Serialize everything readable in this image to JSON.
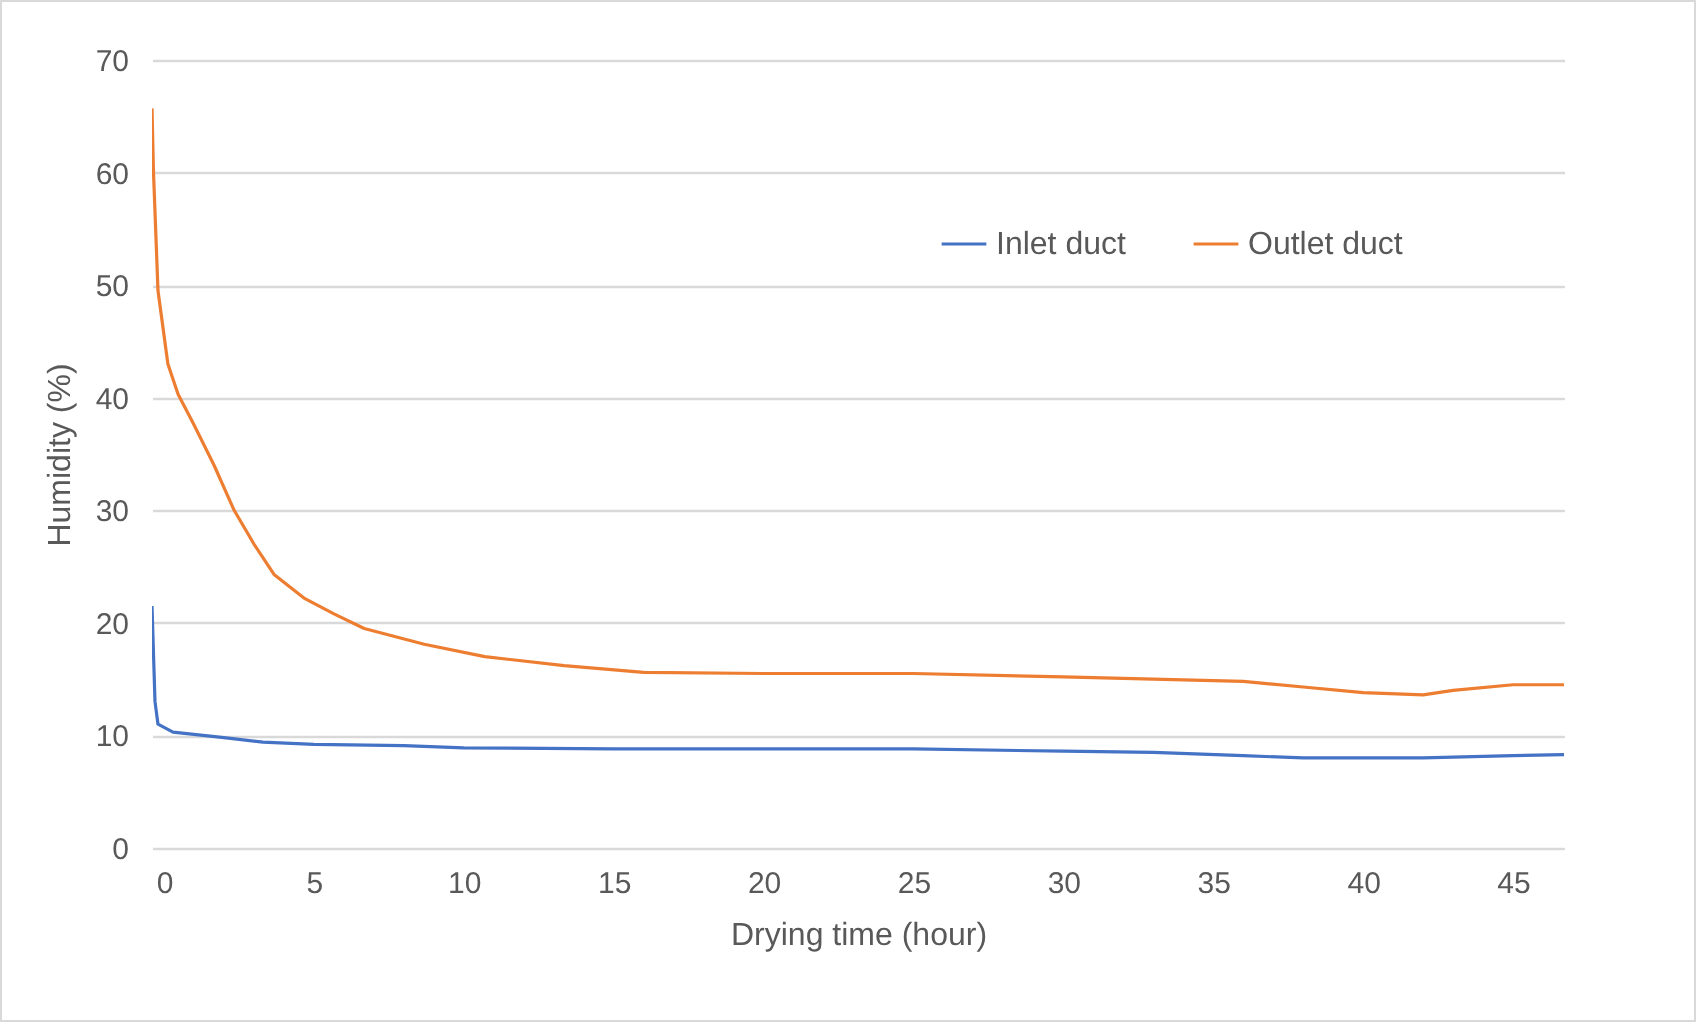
{
  "chart_data": {
    "type": "line",
    "xlabel": "Drying time (hour)",
    "ylabel": "Humidity (%)",
    "xlim": [
      -0.4,
      46.7
    ],
    "xticks": [
      0,
      5,
      10,
      15,
      20,
      25,
      30,
      35,
      40,
      45
    ],
    "ylim": [
      0,
      70
    ],
    "yticks": [
      0,
      10,
      20,
      30,
      40,
      50,
      60,
      70
    ],
    "grid": "y",
    "legend": "top right",
    "line_style": "solid",
    "marker": "none",
    "series": [
      {
        "name": "Inlet duct",
        "color": "#4472c4",
        "x": [
          -0.4,
          -0.3,
          -0.2,
          0.3,
          2,
          3.3,
          5,
          8,
          10,
          15,
          20,
          25,
          30,
          33,
          36,
          38,
          42,
          45,
          46.7
        ],
        "values": [
          21.5,
          13,
          11,
          10.3,
          9.8,
          9.4,
          9.2,
          9.1,
          8.9,
          8.8,
          8.8,
          8.8,
          8.6,
          8.5,
          8.2,
          8,
          8,
          8.2,
          8.3
        ]
      },
      {
        "name": "Outlet duct",
        "color": "#ed7d31",
        "x": [
          -0.4,
          -0.35,
          -0.2,
          0.13,
          0.47,
          1,
          1.67,
          2.34,
          3,
          3.67,
          4.67,
          5.67,
          6.68,
          8.68,
          10.7,
          13.35,
          16,
          20,
          25,
          30,
          33,
          36,
          38,
          40,
          42,
          43,
          45,
          46.7
        ],
        "values": [
          65.7,
          60,
          49.5,
          43,
          40.3,
          37.6,
          34,
          30,
          27,
          24.3,
          22.2,
          20.8,
          19.5,
          18.1,
          17,
          16.2,
          15.6,
          15.5,
          15.5,
          15.2,
          15,
          14.8,
          14.3,
          13.8,
          13.6,
          14,
          14.5,
          14.5
        ]
      }
    ]
  }
}
